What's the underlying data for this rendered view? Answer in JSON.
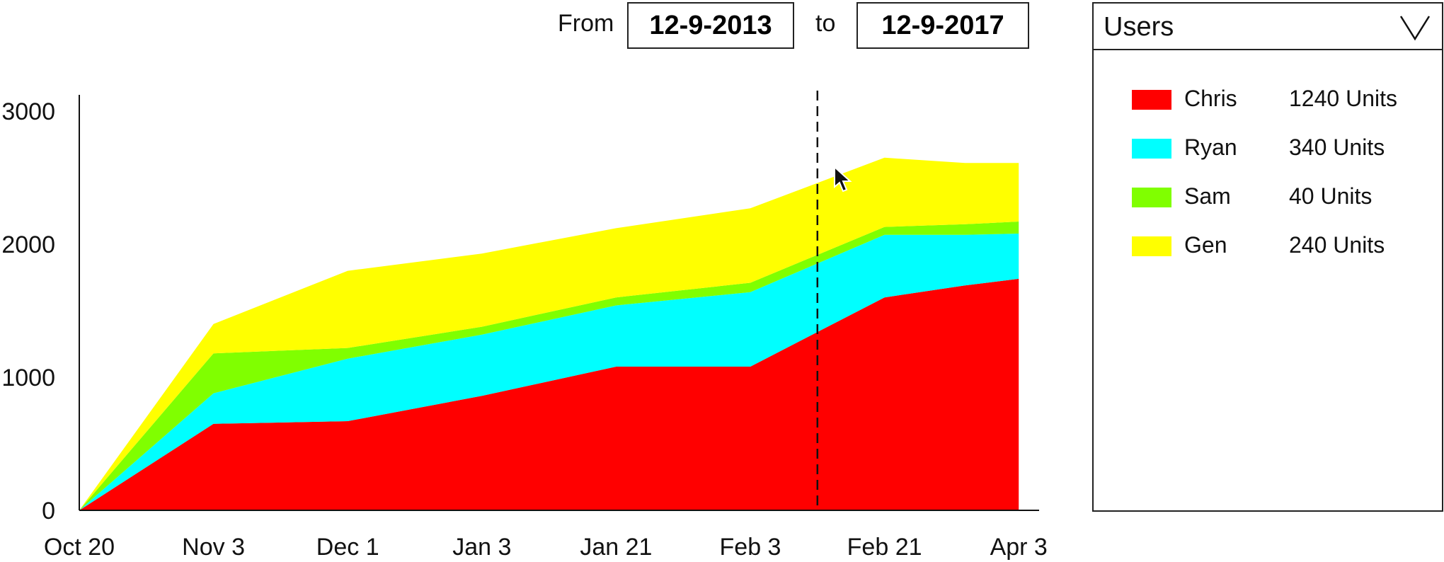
{
  "date_range": {
    "from_label": "From",
    "from_value": "12-9-2013",
    "to_label": "to",
    "to_value": "12-9-2017"
  },
  "users_panel": {
    "title": "Users",
    "entries": [
      {
        "name": "Chris",
        "value": "1240 Units",
        "color": "#ff0000"
      },
      {
        "name": "Ryan",
        "value": "340 Units",
        "color": "#00ffff"
      },
      {
        "name": "Sam",
        "value": "40 Units",
        "color": "#80ff00"
      },
      {
        "name": "Gen",
        "value": "240 Units",
        "color": "#ffff00"
      }
    ]
  },
  "chart_data": {
    "type": "area",
    "stacked": true,
    "categories": [
      "Oct 20",
      "Nov 3",
      "Dec 1",
      "Jan 3",
      "Jan 21",
      "Feb 3",
      "Feb 21",
      "Apr 3"
    ],
    "ylim": [
      0,
      3000
    ],
    "yticks": [
      0,
      1000,
      2000,
      3000
    ],
    "hover_category": "Feb 21",
    "series": [
      {
        "name": "Chris",
        "color": "#ff0000",
        "x": [
          0,
          1,
          2,
          3,
          4,
          5,
          6,
          6.6,
          7
        ],
        "values": [
          0,
          650,
          670,
          860,
          1080,
          1080,
          1600,
          1690,
          1740
        ]
      },
      {
        "name": "Ryan",
        "color": "#00ffff",
        "x": [
          0,
          1,
          2,
          3,
          4,
          5,
          6,
          6.6,
          7
        ],
        "values": [
          0,
          230,
          470,
          460,
          460,
          560,
          470,
          380,
          340
        ]
      },
      {
        "name": "Sam",
        "color": "#80ff00",
        "x": [
          0,
          1,
          2,
          3,
          4,
          5,
          6,
          6.6,
          7
        ],
        "values": [
          0,
          300,
          80,
          60,
          60,
          70,
          60,
          80,
          90
        ]
      },
      {
        "name": "Gen",
        "color": "#ffff00",
        "x": [
          0,
          1,
          2,
          3,
          4,
          5,
          6,
          6.6,
          7
        ],
        "values": [
          0,
          220,
          580,
          550,
          520,
          560,
          520,
          460,
          440
        ]
      }
    ]
  }
}
